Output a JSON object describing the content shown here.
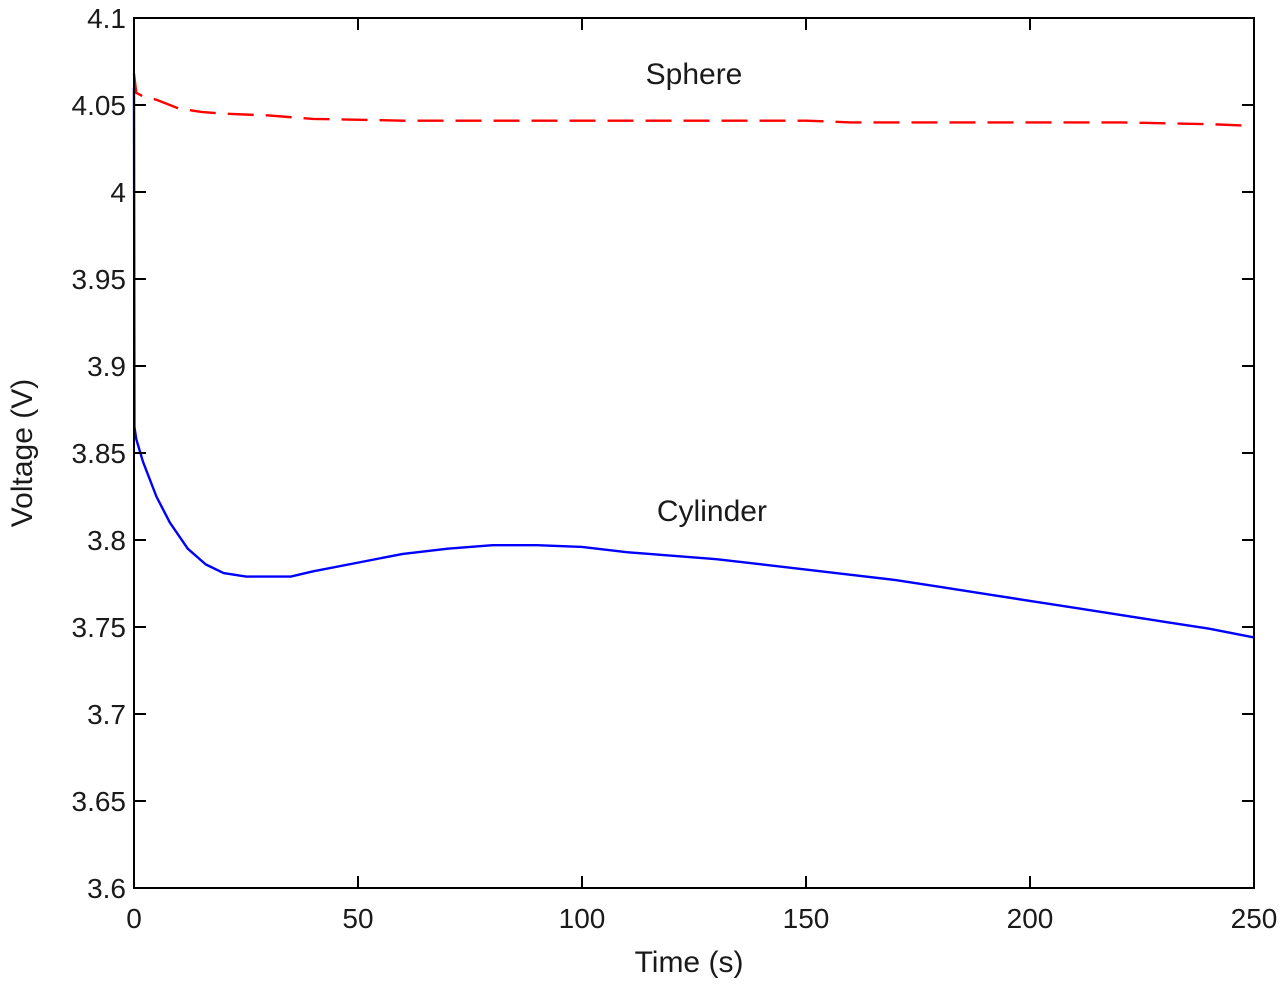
{
  "chart_data": {
    "type": "line",
    "title": "",
    "xlabel": "Time (s)",
    "ylabel": "Voltage (V)",
    "xlim": [
      0,
      250
    ],
    "ylim": [
      3.6,
      4.1
    ],
    "grid": false,
    "x_ticks": [
      0,
      50,
      100,
      150,
      200,
      250
    ],
    "y_ticks": [
      3.6,
      3.65,
      3.7,
      3.75,
      3.8,
      3.85,
      3.9,
      3.95,
      4.0,
      4.05,
      4.1
    ],
    "x_tick_labels": [
      "0",
      "50",
      "100",
      "150",
      "200",
      "250"
    ],
    "y_tick_labels": [
      "3.6",
      "3.65",
      "3.7",
      "3.75",
      "3.8",
      "3.85",
      "3.9",
      "3.95",
      "4",
      "4.05",
      "4.1"
    ],
    "series": [
      {
        "name": "Sphere",
        "color": "#ff0000",
        "style": "dashed",
        "x": [
          0,
          0.5,
          2,
          5,
          10,
          15,
          20,
          30,
          40,
          60,
          80,
          100,
          120,
          140,
          150,
          160,
          180,
          200,
          220,
          240,
          250
        ],
        "y": [
          4.068,
          4.057,
          4.055,
          4.053,
          4.048,
          4.046,
          4.045,
          4.044,
          4.042,
          4.041,
          4.041,
          4.041,
          4.041,
          4.041,
          4.041,
          4.04,
          4.04,
          4.04,
          4.04,
          4.039,
          4.038
        ]
      },
      {
        "name": "Cylinder",
        "color": "#0000ff",
        "style": "solid",
        "x": [
          0,
          0.1,
          0.5,
          2,
          5,
          8,
          12,
          16,
          20,
          25,
          30,
          35,
          40,
          50,
          60,
          70,
          80,
          90,
          100,
          110,
          120,
          130,
          140,
          150,
          160,
          170,
          180,
          190,
          200,
          210,
          220,
          230,
          240,
          250
        ],
        "y": [
          4.06,
          3.865,
          3.858,
          3.845,
          3.825,
          3.81,
          3.795,
          3.786,
          3.781,
          3.779,
          3.779,
          3.779,
          3.782,
          3.787,
          3.792,
          3.795,
          3.797,
          3.797,
          3.796,
          3.793,
          3.791,
          3.789,
          3.786,
          3.783,
          3.78,
          3.777,
          3.773,
          3.769,
          3.765,
          3.761,
          3.757,
          3.753,
          3.749,
          3.744
        ]
      }
    ],
    "annotations": [
      {
        "text": "Sphere",
        "x": 125,
        "y": 4.062
      },
      {
        "text": "Cylinder",
        "x": 129,
        "y": 3.811
      }
    ]
  }
}
